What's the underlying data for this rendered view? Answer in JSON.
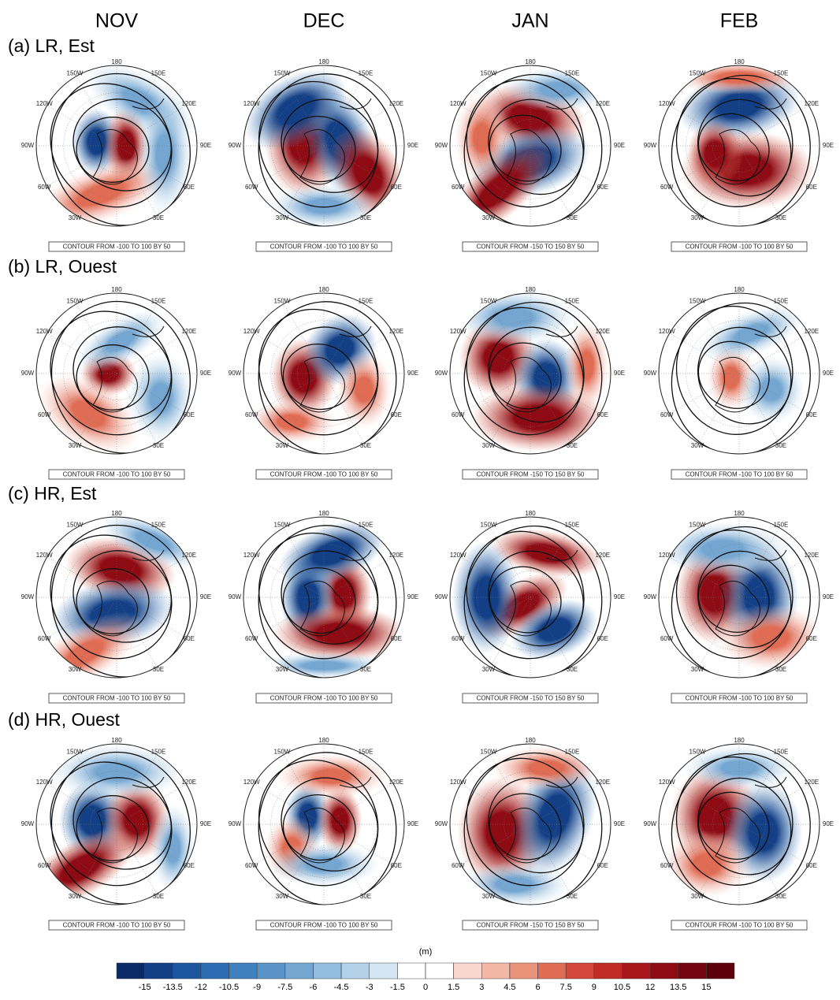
{
  "columns": [
    "NOV",
    "DEC",
    "JAN",
    "FEB"
  ],
  "rows": [
    {
      "label": "(a) LR, Est",
      "captions": [
        "CONTOUR FROM -100 TO 100 BY 50",
        "CONTOUR FROM -100 TO 100 BY 50",
        "CONTOUR FROM -150 TO 150 BY 50",
        "CONTOUR FROM -100 TO 100 BY 50"
      ]
    },
    {
      "label": "(b) LR, Ouest",
      "captions": [
        "CONTOUR FROM -100 TO 100 BY 50",
        "CONTOUR FROM -100 TO 100 BY 50",
        "CONTOUR FROM -150 TO 150 BY 50",
        "CONTOUR FROM -100 TO 100 BY 50"
      ]
    },
    {
      "label": "(c) HR, Est",
      "captions": [
        "CONTOUR FROM -100 TO 100 BY 50",
        "CONTOUR FROM -100 TO 100 BY 50",
        "CONTOUR FROM -150 TO 150 BY 50",
        "CONTOUR FROM -100 TO 100 BY 50"
      ]
    },
    {
      "label": "(d) HR, Ouest",
      "captions": [
        "CONTOUR FROM -100 TO 100 BY 50",
        "CONTOUR FROM -100 TO 100 BY 50",
        "CONTOUR FROM -150 TO 150 BY 50",
        "CONTOUR FROM -100 TO 100 BY 50"
      ]
    }
  ],
  "longitude_labels": [
    "180",
    "150E",
    "120E",
    "90E",
    "60E",
    "30E",
    "30W",
    "60W",
    "90W",
    "120W",
    "150W"
  ],
  "colorbar": {
    "unit": "(m)",
    "ticks": [
      -15,
      -13.5,
      -12,
      -10.5,
      -9,
      -7.5,
      -6,
      -4.5,
      -3,
      -1.5,
      0,
      1.5,
      3,
      4.5,
      6,
      7.5,
      9,
      10.5,
      12,
      13.5,
      15
    ],
    "colors": [
      "#0a2a66",
      "#123f86",
      "#1d56a0",
      "#2b6cb3",
      "#3f80be",
      "#5892c7",
      "#74a6d1",
      "#93bddf",
      "#b3d2ea",
      "#d4e6f3",
      "#ffffff",
      "#ffffff",
      "#f9d7cf",
      "#f3b7a6",
      "#eb927a",
      "#e06c54",
      "#d3473a",
      "#c02a27",
      "#a8161b",
      "#8e0b14",
      "#740510",
      "#5c000c"
    ]
  }
}
